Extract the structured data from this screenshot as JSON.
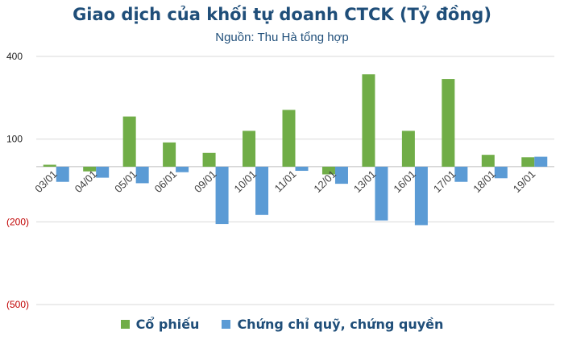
{
  "title": "Giao dịch của khối tự doanh CTCK (Tỷ đồng)",
  "subtitle": "Nguồn: Thu Hà tổng hợp",
  "colors": {
    "series1": "#70ad47",
    "series2": "#5b9bd5",
    "axis_positive": "#1f1f1f",
    "axis_negative": "#c00000",
    "grid": "#d9d9d9",
    "title": "#1f4e79"
  },
  "chart_data": {
    "type": "bar",
    "categories": [
      "03/01",
      "04/01",
      "05/01",
      "06/01",
      "09/01",
      "10/01",
      "11/01",
      "12/01",
      "13/01",
      "16/01",
      "17/01",
      "18/01",
      "19/01"
    ],
    "series": [
      {
        "name": "Cổ phiếu",
        "values": [
          7,
          -17,
          182,
          88,
          50,
          130,
          206,
          -28,
          335,
          130,
          318,
          43,
          34
        ]
      },
      {
        "name": "Chứng chỉ quỹ, chứng quyền",
        "values": [
          -55,
          -40,
          -60,
          -20,
          -208,
          -175,
          -15,
          -62,
          -195,
          -212,
          -55,
          -42,
          36
        ]
      }
    ],
    "y_ticks": [
      {
        "value": 400,
        "label": "400"
      },
      {
        "value": 100,
        "label": "100"
      },
      {
        "value": -200,
        "label": "(200)"
      },
      {
        "value": -500,
        "label": "(500)"
      }
    ],
    "ylim": [
      -500,
      400
    ],
    "grid": true,
    "legend": "bottom"
  }
}
